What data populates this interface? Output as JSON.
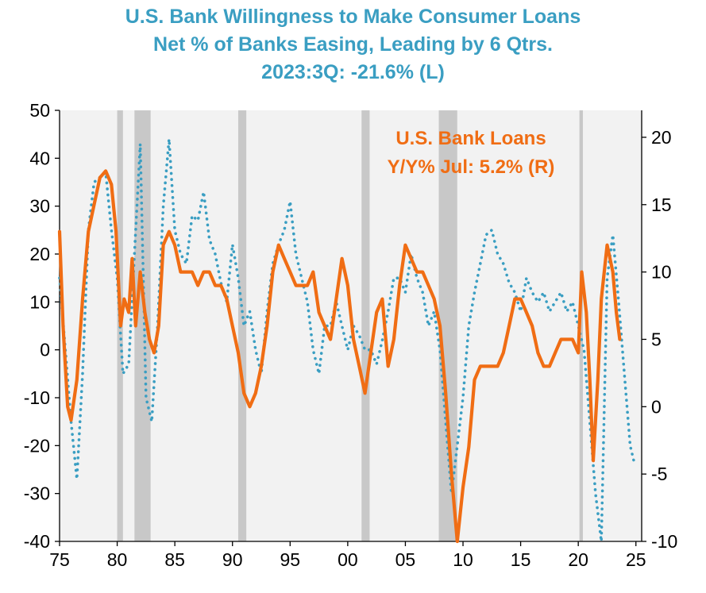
{
  "title_lines": [
    "U.S. Bank Willingness to Make Consumer Loans",
    "Net % of Banks Easing, Leading by 6 Qtrs.",
    "2023:3Q:   -21.6% (L)"
  ],
  "colors": {
    "willingness": "#3a9ec2",
    "loans": "#f06d14",
    "recession": "#c8c8c8",
    "plot_bg": "#f2f2f2"
  },
  "chart_data": {
    "type": "line",
    "x_ticks": [
      "75",
      "80",
      "85",
      "90",
      "95",
      "00",
      "05",
      "10",
      "15",
      "20",
      "25"
    ],
    "xlim": [
      1975,
      2025.5
    ],
    "left_axis": {
      "ylim": [
        -40,
        50
      ],
      "ticks": [
        "50",
        "40",
        "30",
        "20",
        "10",
        "0",
        "-10",
        "-20",
        "-30",
        "-40"
      ]
    },
    "right_axis": {
      "ylim": [
        -10,
        22
      ],
      "ticks": [
        "20",
        "15",
        "10",
        "5",
        "0",
        "-5",
        "-10"
      ]
    },
    "recessions": [
      [
        1980.0,
        1980.5
      ],
      [
        1981.5,
        1982.9
      ],
      [
        1990.5,
        1991.2
      ],
      [
        2001.2,
        2001.9
      ],
      [
        2007.9,
        2009.5
      ],
      [
        2020.1,
        2020.4
      ]
    ],
    "annotation_loans": [
      "U.S. Bank Loans",
      "Y/Y%   Jul: 5.2% (R)"
    ],
    "series": [
      {
        "name": "U.S. Bank Willingness to Make Consumer Loans",
        "axis": "left",
        "style": "dotted",
        "x": [
          1975.0,
          1975.5,
          1976.0,
          1976.5,
          1977.0,
          1977.5,
          1978.0,
          1978.5,
          1979.0,
          1979.5,
          1980.0,
          1980.5,
          1981.0,
          1981.5,
          1982.0,
          1982.5,
          1983.0,
          1983.5,
          1984.0,
          1984.5,
          1985.0,
          1985.5,
          1986.0,
          1986.5,
          1987.0,
          1987.5,
          1988.0,
          1988.5,
          1989.0,
          1989.5,
          1990.0,
          1990.5,
          1991.0,
          1991.5,
          1992.0,
          1992.5,
          1993.0,
          1993.5,
          1994.0,
          1994.5,
          1995.0,
          1995.5,
          1996.0,
          1996.5,
          1997.0,
          1997.5,
          1998.0,
          1998.5,
          1999.0,
          1999.5,
          2000.0,
          2000.5,
          2001.0,
          2001.5,
          2002.0,
          2002.5,
          2003.0,
          2003.5,
          2004.0,
          2004.5,
          2005.0,
          2005.5,
          2006.0,
          2006.5,
          2007.0,
          2007.5,
          2008.0,
          2008.5,
          2009.0,
          2009.5,
          2010.0,
          2010.5,
          2011.0,
          2011.5,
          2012.0,
          2012.5,
          2013.0,
          2013.5,
          2014.0,
          2014.5,
          2015.0,
          2015.5,
          2016.0,
          2016.5,
          2017.0,
          2017.5,
          2018.0,
          2018.5,
          2019.0,
          2019.5,
          2020.0,
          2020.5,
          2021.0,
          2021.5,
          2022.0,
          2022.5,
          2023.0,
          2023.5,
          2024.0,
          2024.5,
          2024.9
        ],
        "values": [
          15,
          0,
          -15,
          -27,
          -5,
          25,
          35,
          36,
          37,
          25,
          15,
          -5,
          -3,
          20,
          43,
          -10,
          -15,
          5,
          30,
          44,
          25,
          20,
          18,
          28,
          27,
          33,
          23,
          20,
          14,
          10,
          22,
          15,
          5,
          8,
          0,
          -5,
          8,
          18,
          22,
          25,
          31,
          20,
          15,
          10,
          0,
          -5,
          5,
          5,
          10,
          5,
          0,
          5,
          3,
          0,
          0,
          -3,
          2,
          8,
          15,
          15,
          12,
          20,
          15,
          12,
          5,
          8,
          0,
          -15,
          -30,
          -20,
          -10,
          5,
          12,
          18,
          24,
          25,
          20,
          18,
          14,
          12,
          8,
          15,
          12,
          10,
          12,
          8,
          10,
          12,
          8,
          10,
          5,
          0,
          -15,
          -30,
          -40,
          15,
          24,
          10,
          -5,
          -20,
          -24
        ]
      },
      {
        "name": "U.S. Bank Loans Y/Y%",
        "axis": "right",
        "style": "solid",
        "x": [
          1975.0,
          1975.3,
          1975.7,
          1976.0,
          1976.5,
          1977.0,
          1977.5,
          1978.0,
          1978.5,
          1979.0,
          1979.5,
          1979.9,
          1980.3,
          1980.6,
          1981.0,
          1981.3,
          1981.6,
          1982.0,
          1982.4,
          1982.8,
          1983.2,
          1983.6,
          1984.0,
          1984.5,
          1985.0,
          1985.5,
          1986.0,
          1986.5,
          1987.0,
          1987.5,
          1988.0,
          1988.5,
          1989.0,
          1989.5,
          1990.0,
          1990.5,
          1991.0,
          1991.5,
          1992.0,
          1992.5,
          1993.0,
          1993.5,
          1994.0,
          1994.5,
          1995.0,
          1995.5,
          1996.0,
          1996.5,
          1997.0,
          1997.5,
          1998.0,
          1998.5,
          1999.0,
          1999.5,
          2000.0,
          2000.5,
          2001.0,
          2001.5,
          2002.0,
          2002.5,
          2003.0,
          2003.5,
          2004.0,
          2004.5,
          2005.0,
          2005.5,
          2006.0,
          2006.5,
          2007.0,
          2007.5,
          2008.0,
          2008.5,
          2009.0,
          2009.5,
          2010.0,
          2010.5,
          2011.0,
          2011.5,
          2012.0,
          2012.5,
          2013.0,
          2013.5,
          2014.0,
          2014.5,
          2015.0,
          2015.5,
          2016.0,
          2016.5,
          2017.0,
          2017.5,
          2018.0,
          2018.5,
          2019.0,
          2019.5,
          2020.0,
          2020.3,
          2020.7,
          2021.0,
          2021.3,
          2021.7,
          2022.0,
          2022.5,
          2023.0,
          2023.3,
          2023.6
        ],
        "values": [
          13,
          6,
          0,
          -1,
          2,
          8,
          13,
          15,
          17,
          17.5,
          16.5,
          13,
          6,
          8,
          7,
          11,
          6,
          10,
          7,
          5,
          4,
          6,
          12,
          13,
          12,
          10,
          10,
          10,
          9,
          10,
          10,
          9,
          9,
          8,
          6,
          4,
          1,
          0,
          1,
          3,
          6,
          10,
          12,
          11,
          10,
          9,
          9,
          9,
          10,
          7,
          6,
          5,
          8,
          11,
          9,
          5,
          3,
          1,
          4,
          7,
          8,
          3,
          5,
          9,
          12,
          11,
          10,
          10,
          9,
          8,
          6,
          1,
          -5,
          -10,
          -6,
          -3,
          2,
          3,
          3,
          3,
          3,
          4,
          6,
          8,
          8,
          7,
          6,
          4,
          3,
          3,
          4,
          5,
          5,
          5,
          4,
          10,
          7,
          2,
          -4,
          2,
          8,
          12,
          10,
          7,
          5
        ]
      }
    ]
  }
}
